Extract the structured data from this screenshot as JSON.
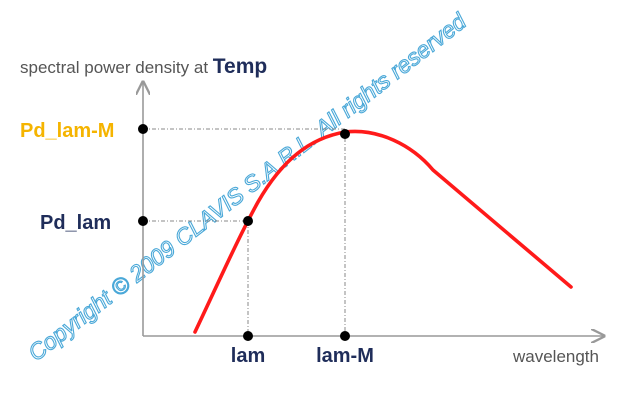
{
  "y_axis_label": "spectral power density at ",
  "y_axis_label_emphasis": "Temp",
  "x_axis_label": "wavelength",
  "y_ticks": [
    {
      "label": "Pd_lam-M",
      "color": "#f5b400"
    },
    {
      "label": "Pd_lam",
      "color": "#1f2d5a"
    }
  ],
  "x_ticks": [
    {
      "label": "lam"
    },
    {
      "label": "lam-M"
    }
  ],
  "watermark": "Copyright © 2009 CLAVIS S.A.R.L. All rights reserved",
  "colors": {
    "curve": "#ff1a1a",
    "axis": "#999999",
    "marker": "#000000",
    "watermark": "#4aa8d8"
  }
}
